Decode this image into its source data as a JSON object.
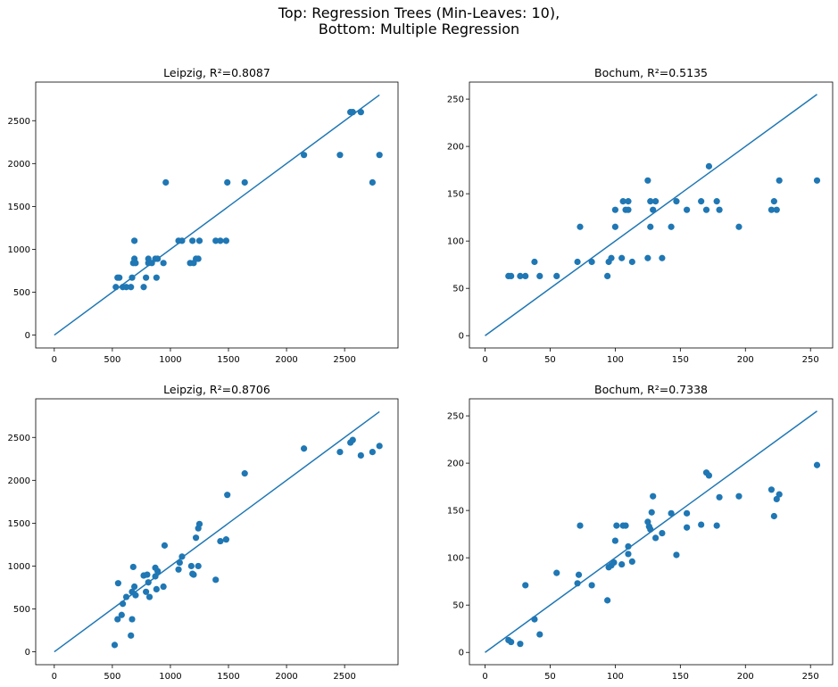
{
  "figure": {
    "title_line1": "Top: Regression Trees (Min-Leaves: 10),",
    "title_line2": "Bottom: Multiple Regression",
    "series_color": "#1f77b4"
  },
  "chart_data": [
    {
      "type": "scatter",
      "title": "Leipzig, R²=0.8087",
      "xlim": [
        -160,
        2960
      ],
      "ylim": [
        -150,
        2950
      ],
      "xticks": [
        0,
        500,
        1000,
        1500,
        2000,
        2500
      ],
      "yticks": [
        0,
        500,
        1000,
        1500,
        2000,
        2500
      ],
      "reference_line": [
        [
          0,
          0
        ],
        [
          2800,
          2800
        ]
      ],
      "points": [
        [
          530,
          560
        ],
        [
          545,
          670
        ],
        [
          560,
          670
        ],
        [
          590,
          560
        ],
        [
          620,
          560
        ],
        [
          660,
          560
        ],
        [
          670,
          670
        ],
        [
          680,
          840
        ],
        [
          690,
          890
        ],
        [
          700,
          840
        ],
        [
          690,
          1100
        ],
        [
          770,
          560
        ],
        [
          790,
          670
        ],
        [
          810,
          890
        ],
        [
          810,
          840
        ],
        [
          840,
          840
        ],
        [
          870,
          890
        ],
        [
          880,
          670
        ],
        [
          890,
          890
        ],
        [
          940,
          840
        ],
        [
          960,
          1780
        ],
        [
          1070,
          1100
        ],
        [
          1100,
          1100
        ],
        [
          1170,
          840
        ],
        [
          1190,
          1100
        ],
        [
          1200,
          840
        ],
        [
          1220,
          890
        ],
        [
          1240,
          890
        ],
        [
          1250,
          1100
        ],
        [
          1390,
          1100
        ],
        [
          1430,
          1100
        ],
        [
          1480,
          1100
        ],
        [
          1490,
          1780
        ],
        [
          1640,
          1780
        ],
        [
          2150,
          2100
        ],
        [
          2460,
          2100
        ],
        [
          2550,
          2600
        ],
        [
          2570,
          2600
        ],
        [
          2640,
          2600
        ],
        [
          2740,
          1780
        ],
        [
          2800,
          2100
        ]
      ]
    },
    {
      "type": "scatter",
      "title": "Bochum, R²=0.5135",
      "xlim": [
        -12,
        267
      ],
      "ylim": [
        -13,
        268
      ],
      "xticks": [
        0,
        50,
        100,
        150,
        200,
        250
      ],
      "yticks": [
        0,
        50,
        100,
        150,
        200,
        250
      ],
      "reference_line": [
        [
          0,
          0
        ],
        [
          255,
          255
        ]
      ],
      "points": [
        [
          18,
          63
        ],
        [
          20,
          63
        ],
        [
          27,
          63
        ],
        [
          31,
          63
        ],
        [
          38,
          78
        ],
        [
          42,
          63
        ],
        [
          55,
          63
        ],
        [
          71,
          78
        ],
        [
          73,
          115
        ],
        [
          82,
          78
        ],
        [
          94,
          63
        ],
        [
          95,
          78
        ],
        [
          97,
          82
        ],
        [
          100,
          115
        ],
        [
          100,
          133
        ],
        [
          105,
          82
        ],
        [
          106,
          142
        ],
        [
          108,
          133
        ],
        [
          110,
          133
        ],
        [
          110,
          142
        ],
        [
          113,
          78
        ],
        [
          125,
          82
        ],
        [
          125,
          164
        ],
        [
          127,
          142
        ],
        [
          127,
          115
        ],
        [
          129,
          133
        ],
        [
          131,
          142
        ],
        [
          136,
          82
        ],
        [
          143,
          115
        ],
        [
          147,
          142
        ],
        [
          155,
          133
        ],
        [
          166,
          142
        ],
        [
          170,
          133
        ],
        [
          172,
          179
        ],
        [
          178,
          142
        ],
        [
          180,
          133
        ],
        [
          195,
          115
        ],
        [
          220,
          133
        ],
        [
          222,
          142
        ],
        [
          224,
          133
        ],
        [
          226,
          164
        ],
        [
          255,
          164
        ]
      ]
    },
    {
      "type": "scatter",
      "title": "Leipzig, R²=0.8706",
      "xlim": [
        -160,
        2960
      ],
      "ylim": [
        -150,
        2950
      ],
      "xticks": [
        0,
        500,
        1000,
        1500,
        2000,
        2500
      ],
      "yticks": [
        0,
        500,
        1000,
        1500,
        2000,
        2500
      ],
      "reference_line": [
        [
          0,
          0
        ],
        [
          2800,
          2800
        ]
      ],
      "points": [
        [
          520,
          80
        ],
        [
          545,
          380
        ],
        [
          550,
          800
        ],
        [
          580,
          430
        ],
        [
          590,
          560
        ],
        [
          620,
          640
        ],
        [
          660,
          190
        ],
        [
          670,
          380
        ],
        [
          670,
          700
        ],
        [
          680,
          990
        ],
        [
          690,
          760
        ],
        [
          700,
          660
        ],
        [
          770,
          890
        ],
        [
          790,
          700
        ],
        [
          800,
          900
        ],
        [
          810,
          810
        ],
        [
          820,
          640
        ],
        [
          870,
          980
        ],
        [
          870,
          880
        ],
        [
          880,
          730
        ],
        [
          890,
          940
        ],
        [
          940,
          760
        ],
        [
          950,
          1240
        ],
        [
          1070,
          960
        ],
        [
          1080,
          1040
        ],
        [
          1100,
          1110
        ],
        [
          1180,
          1000
        ],
        [
          1190,
          910
        ],
        [
          1200,
          900
        ],
        [
          1220,
          1330
        ],
        [
          1240,
          1000
        ],
        [
          1240,
          1440
        ],
        [
          1250,
          1490
        ],
        [
          1390,
          840
        ],
        [
          1430,
          1290
        ],
        [
          1480,
          1310
        ],
        [
          1490,
          1830
        ],
        [
          1640,
          2080
        ],
        [
          2150,
          2370
        ],
        [
          2460,
          2330
        ],
        [
          2550,
          2440
        ],
        [
          2570,
          2470
        ],
        [
          2640,
          2290
        ],
        [
          2740,
          2330
        ],
        [
          2800,
          2400
        ]
      ]
    },
    {
      "type": "scatter",
      "title": "Bochum, R²=0.7338",
      "xlim": [
        -12,
        267
      ],
      "ylim": [
        -13,
        268
      ],
      "xticks": [
        0,
        50,
        100,
        150,
        200,
        250
      ],
      "yticks": [
        0,
        50,
        100,
        150,
        200,
        250
      ],
      "reference_line": [
        [
          0,
          0
        ],
        [
          255,
          255
        ]
      ],
      "points": [
        [
          18,
          13
        ],
        [
          20,
          11
        ],
        [
          27,
          9
        ],
        [
          31,
          71
        ],
        [
          38,
          35
        ],
        [
          42,
          19
        ],
        [
          55,
          84
        ],
        [
          71,
          73
        ],
        [
          72,
          82
        ],
        [
          73,
          134
        ],
        [
          82,
          71
        ],
        [
          94,
          55
        ],
        [
          95,
          90
        ],
        [
          97,
          92
        ],
        [
          99,
          95
        ],
        [
          100,
          118
        ],
        [
          101,
          134
        ],
        [
          105,
          93
        ],
        [
          106,
          134
        ],
        [
          108,
          134
        ],
        [
          110,
          112
        ],
        [
          110,
          104
        ],
        [
          113,
          96
        ],
        [
          125,
          138
        ],
        [
          126,
          133
        ],
        [
          127,
          130
        ],
        [
          128,
          148
        ],
        [
          129,
          165
        ],
        [
          131,
          121
        ],
        [
          136,
          126
        ],
        [
          143,
          147
        ],
        [
          147,
          103
        ],
        [
          155,
          147
        ],
        [
          155,
          132
        ],
        [
          166,
          135
        ],
        [
          170,
          190
        ],
        [
          172,
          187
        ],
        [
          178,
          134
        ],
        [
          180,
          164
        ],
        [
          195,
          165
        ],
        [
          220,
          172
        ],
        [
          222,
          144
        ],
        [
          224,
          162
        ],
        [
          226,
          167
        ],
        [
          255,
          198
        ]
      ]
    }
  ]
}
